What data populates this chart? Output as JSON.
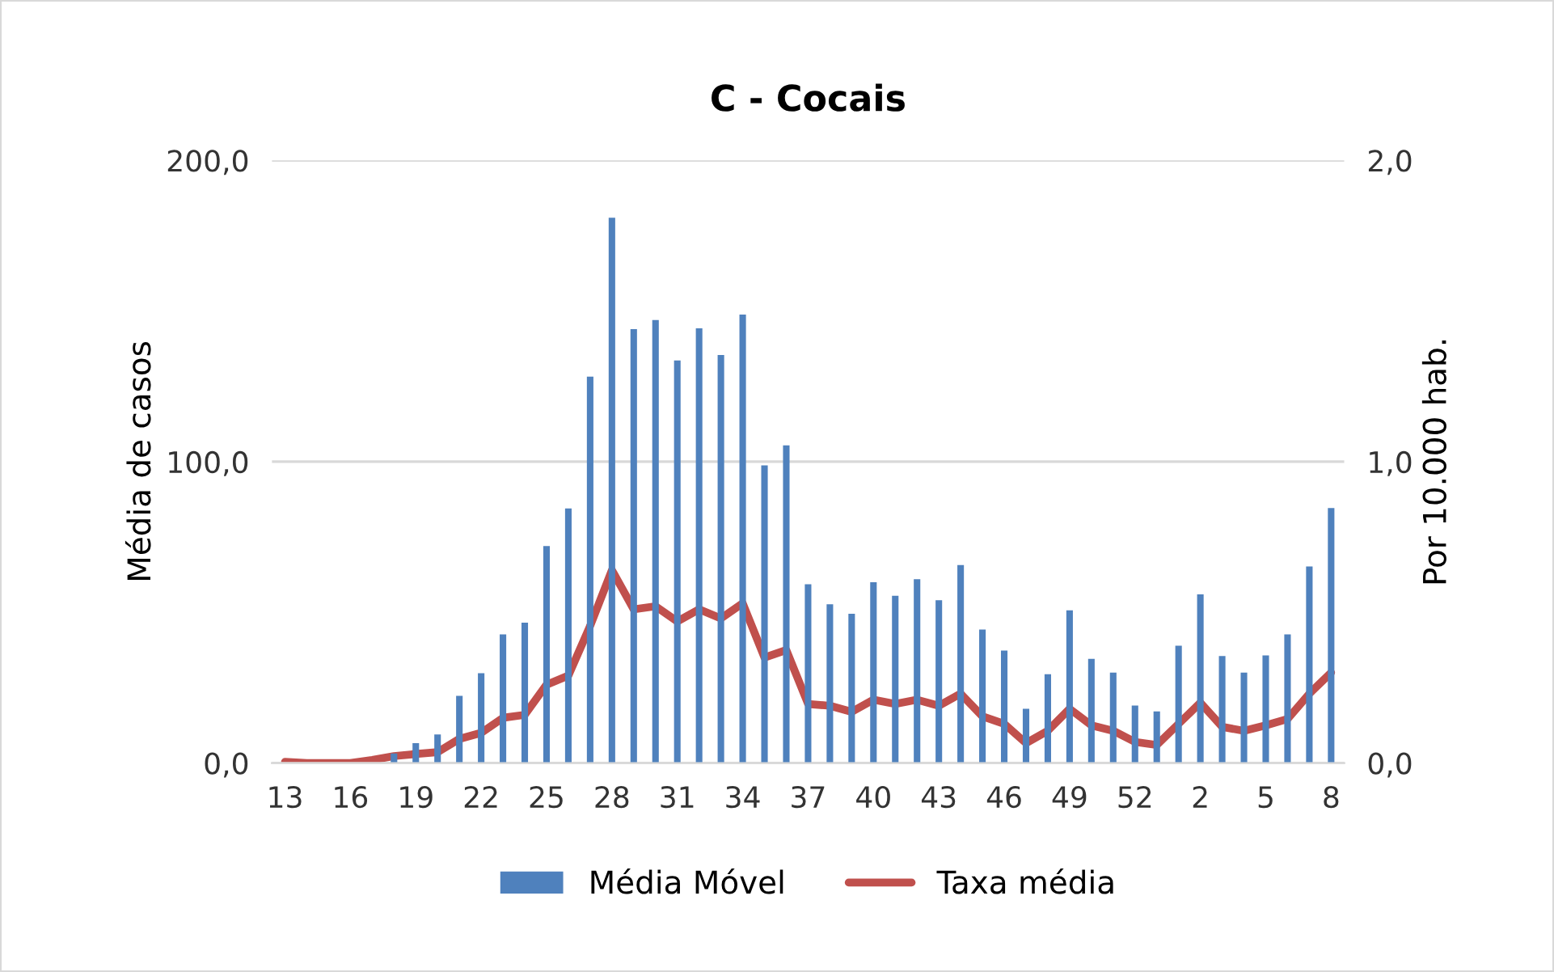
{
  "chart_data": {
    "type": "bar",
    "title": "C - Cocais",
    "ylabel": "Média de casos",
    "y2label": "Por 10.000 hab.",
    "categories": [
      "13",
      null,
      null,
      "16",
      null,
      null,
      "19",
      null,
      null,
      "22",
      null,
      null,
      "25",
      null,
      null,
      "28",
      null,
      null,
      "31",
      null,
      null,
      "34",
      null,
      null,
      "37",
      null,
      null,
      "40",
      null,
      null,
      "43",
      null,
      null,
      "46",
      null,
      null,
      "49",
      null,
      null,
      "52",
      null,
      null,
      "2",
      null,
      null,
      "5",
      null,
      null,
      "8"
    ],
    "series": [
      {
        "name": "Média Móvel",
        "color": "#4f81bd",
        "values": [
          0,
          0,
          0,
          0,
          0,
          3.2,
          6.6,
          9.5,
          22.3,
          29.8,
          42.7,
          46.6,
          72,
          84.5,
          128.2,
          181,
          144,
          147,
          133.6,
          144.3,
          135.4,
          148.8,
          98.8,
          105.4,
          59.3,
          52.7,
          49.5,
          60,
          55.5,
          61,
          54,
          65.7,
          44.3,
          37.3,
          18,
          29.5,
          50.7,
          34.6,
          30,
          19.1,
          17.1,
          38.9,
          56,
          35.5,
          30,
          35.7,
          42.7,
          65.2,
          84.6
        ]
      },
      {
        "name": "Taxa média",
        "type": "line",
        "axis": "y2",
        "color": "#c0504d",
        "values": [
          0.004,
          0,
          0,
          0,
          0.01,
          0.023,
          0.03,
          0.036,
          0.08,
          0.1,
          0.15,
          0.16,
          0.26,
          0.29,
          0.455,
          0.64,
          0.51,
          0.52,
          0.47,
          0.51,
          0.48,
          0.53,
          0.35,
          0.375,
          0.196,
          0.19,
          0.17,
          0.21,
          0.196,
          0.21,
          0.19,
          0.23,
          0.155,
          0.13,
          0.066,
          0.107,
          0.18,
          0.125,
          0.107,
          0.07,
          0.06,
          0.13,
          0.2,
          0.12,
          0.107,
          0.125,
          0.146,
          0.23,
          0.3
        ]
      }
    ],
    "ylim": [
      0,
      200
    ],
    "yticks": [
      {
        "value": 0,
        "label": "0,0"
      },
      {
        "value": 100,
        "label": "100,0"
      },
      {
        "value": 200,
        "label": "200,0"
      }
    ],
    "y2lim": [
      0,
      2
    ],
    "y2ticks": [
      {
        "value": 0,
        "label": "0,0"
      },
      {
        "value": 1,
        "label": "1,0"
      },
      {
        "value": 2,
        "label": "2,0"
      }
    ],
    "grid": "y",
    "legend": "bottom"
  }
}
